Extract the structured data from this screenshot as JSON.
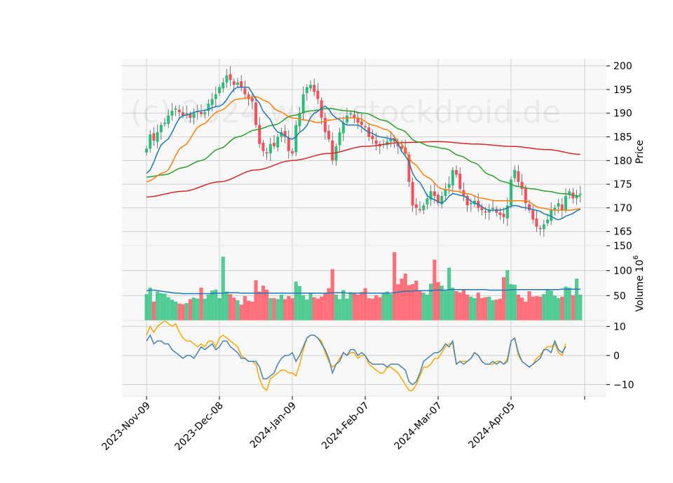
{
  "chart_data": {
    "type": "candlestick",
    "watermark": "(c) 2024 www.stockdroid.de",
    "x_ticks": [
      "2023-Nov-09",
      "2023-Dec-08",
      "2024-Jan-09",
      "2024-Feb-07",
      "2024-Mar-07",
      "2024-Apr-05"
    ],
    "x_tick_index": [
      0,
      20,
      40,
      60,
      80,
      100
    ],
    "n_bars": 120,
    "colors": {
      "up": "#26c07a",
      "down": "#ff4d5a",
      "ma_fast": "#1f77b4",
      "ma_mid": "#ff7f0e",
      "ma_slow": "#2ca02c",
      "ma_long": "#d62728",
      "osc1": "#4682b4",
      "osc2": "#ffa500",
      "vol_ma": "#1f77b4"
    },
    "panels": [
      {
        "name": "price",
        "ylabel": "Price",
        "ylim": [
          162,
          201.5
        ],
        "yticks": [
          165,
          170,
          175,
          180,
          185,
          190,
          195,
          200
        ]
      },
      {
        "name": "volume",
        "ylabel": "Volume  10",
        "ylabel_exp": "6",
        "ylim": [
          0,
          150
        ],
        "yticks": [
          50,
          100,
          150
        ]
      },
      {
        "name": "oscillator",
        "ylabel": "",
        "ylim": [
          -14,
          12
        ],
        "yticks": [
          -10,
          0,
          10
        ]
      }
    ],
    "closes": [
      182.5,
      185.5,
      184.2,
      186.0,
      187.5,
      188.0,
      189.5,
      190.5,
      191.0,
      190.2,
      189.5,
      190.0,
      189.0,
      190.0,
      190.5,
      189.8,
      190.2,
      192.0,
      193.0,
      194.0,
      195.5,
      196.5,
      198.0,
      197.0,
      196.0,
      196.5,
      195.5,
      194.0,
      193.0,
      192.5,
      187.5,
      183.5,
      182.0,
      181.5,
      183.5,
      183.0,
      185.0,
      186.0,
      185.0,
      182.0,
      181.5,
      187.5,
      190.0,
      194.0,
      195.5,
      196.0,
      194.5,
      193.0,
      189.0,
      186.0,
      184.5,
      180.0,
      183.0,
      186.0,
      188.0,
      189.5,
      190.0,
      189.0,
      188.0,
      187.5,
      187.0,
      185.0,
      184.5,
      183.5,
      183.0,
      183.5,
      184.0,
      184.5,
      184.0,
      183.0,
      182.5,
      181.5,
      175.5,
      170.5,
      170.0,
      169.5,
      170.5,
      172.0,
      173.5,
      172.5,
      171.0,
      172.5,
      174.0,
      175.0,
      178.0,
      177.0,
      174.0,
      172.5,
      170.5,
      171.0,
      171.5,
      170.0,
      169.5,
      169.0,
      169.5,
      170.0,
      169.0,
      168.5,
      168.0,
      170.5,
      176.0,
      178.0,
      175.5,
      174.0,
      171.0,
      169.5,
      167.5,
      166.0,
      165.5,
      166.5,
      167.5,
      169.5,
      170.0,
      171.0,
      169.5,
      172.5,
      173.5,
      172.0,
      172.5,
      173.0
    ],
    "volume": [
      53,
      66,
      38,
      58,
      55,
      54,
      47,
      42,
      38,
      34,
      33,
      35,
      43,
      46,
      44,
      66,
      44,
      52,
      60,
      62,
      45,
      128,
      58,
      53,
      46,
      41,
      32,
      49,
      40,
      38,
      81,
      58,
      70,
      62,
      45,
      45,
      43,
      52,
      43,
      49,
      45,
      78,
      69,
      51,
      42,
      56,
      47,
      44,
      48,
      54,
      65,
      103,
      52,
      43,
      61,
      44,
      57,
      55,
      52,
      57,
      65,
      45,
      44,
      51,
      47,
      54,
      58,
      53,
      137,
      73,
      84,
      94,
      71,
      73,
      80,
      59,
      56,
      52,
      74,
      122,
      77,
      70,
      60,
      106,
      66,
      59,
      56,
      62,
      52,
      48,
      45,
      56,
      45,
      47,
      48,
      41,
      42,
      44,
      87,
      101,
      73,
      72,
      52,
      46,
      38,
      59,
      48,
      49,
      48,
      53,
      62,
      60,
      50,
      45,
      48,
      68,
      66,
      51,
      84,
      52
    ],
    "vol_ma": [
      60,
      61,
      61,
      60,
      59,
      58,
      57,
      56,
      55,
      55,
      54,
      54,
      54,
      54,
      54,
      54,
      54,
      54,
      54,
      55,
      55,
      55,
      56,
      56,
      56,
      56,
      55,
      55,
      55,
      55,
      55,
      55,
      55,
      55,
      55,
      55,
      55,
      55,
      55,
      55,
      55,
      55,
      55,
      55,
      55,
      55,
      55,
      55,
      55,
      55,
      55,
      56,
      56,
      56,
      56,
      55,
      55,
      55,
      55,
      55,
      55,
      55,
      55,
      55,
      55,
      55,
      55,
      55,
      56,
      57,
      58,
      59,
      59,
      59,
      60,
      60,
      60,
      60,
      60,
      61,
      61,
      61,
      61,
      62,
      62,
      62,
      62,
      62,
      62,
      62,
      62,
      62,
      62,
      62,
      61,
      61,
      61,
      61,
      61,
      61,
      62,
      62,
      62,
      62,
      62,
      62,
      62,
      62,
      62,
      62,
      62,
      62,
      62,
      62,
      63,
      63,
      63,
      63,
      63,
      63
    ],
    "osc1": [
      5,
      7,
      4,
      5,
      5,
      4,
      4,
      2,
      1,
      0,
      -1,
      0,
      0,
      -1,
      1,
      3,
      2,
      3,
      4,
      2,
      3,
      5,
      5,
      3,
      2,
      1,
      -1,
      -1,
      -2,
      -2,
      -2,
      -4,
      -8,
      -8,
      -7,
      -6,
      -3,
      -1,
      0,
      0,
      1,
      -2,
      0,
      3,
      6,
      7,
      7,
      6,
      4,
      2,
      -1,
      -6,
      -3,
      -2,
      1,
      0,
      2,
      2,
      0,
      1,
      0,
      -2,
      -3,
      -3,
      -3,
      -3,
      -4,
      -3,
      -3,
      -3,
      -4,
      -5,
      -9,
      -10,
      -9,
      -6,
      -2,
      -1,
      0,
      1,
      1,
      2,
      4,
      3,
      5,
      -3,
      -2,
      -3,
      -2,
      -1,
      1,
      0,
      -2,
      -3,
      -3,
      -2,
      -3,
      -2,
      -3,
      -2,
      5,
      6,
      1,
      -2,
      -3,
      -4,
      -3,
      -2,
      -1,
      2,
      2,
      1,
      5,
      2,
      1,
      3
    ],
    "osc2": [
      7,
      10,
      8,
      10,
      11,
      12,
      11,
      10,
      11,
      8,
      6,
      5,
      5,
      4,
      3,
      4,
      3,
      5,
      5,
      3,
      6,
      7,
      6,
      5,
      4,
      3,
      0,
      -1,
      -2,
      -2,
      -3,
      -8,
      -11,
      -12,
      -8,
      -7,
      -6,
      -5,
      -5,
      -6,
      -6,
      -7,
      -3,
      2,
      6,
      7,
      7,
      6,
      5,
      1,
      -2,
      -4,
      -3,
      -1,
      1,
      0,
      1,
      1,
      -1,
      0,
      0,
      -3,
      -4,
      -5,
      -6,
      -6,
      -4,
      -4,
      -5,
      -6,
      -8,
      -10,
      -12,
      -12,
      -10,
      -7,
      -4,
      -4,
      -3,
      -1,
      -1,
      1,
      3,
      4,
      4,
      -3,
      -2,
      -2,
      -2,
      -1,
      1,
      0,
      -2,
      -3,
      -3,
      -3,
      -2,
      -2,
      -3,
      -1,
      5,
      6,
      0,
      -2,
      -3,
      -4,
      -3,
      -1,
      0,
      2,
      3,
      3,
      4,
      1,
      0,
      4
    ],
    "ma_fast_anchor": [
      [
        0,
        177.3
      ],
      [
        5,
        184.0
      ],
      [
        10,
        189.5
      ],
      [
        15,
        190.5
      ],
      [
        20,
        191.5
      ],
      [
        25,
        195.5
      ],
      [
        28,
        195.5
      ],
      [
        30,
        193.0
      ],
      [
        33,
        189.5
      ],
      [
        36,
        186.0
      ],
      [
        40,
        184.5
      ],
      [
        43,
        186.5
      ],
      [
        46,
        190.0
      ],
      [
        49,
        191.5
      ],
      [
        52,
        189.0
      ],
      [
        55,
        187.5
      ],
      [
        58,
        187.5
      ],
      [
        61,
        186.0
      ],
      [
        64,
        185.0
      ],
      [
        68,
        184.5
      ],
      [
        71,
        181.0
      ],
      [
        74,
        176.0
      ],
      [
        78,
        172.0
      ],
      [
        81,
        171.0
      ],
      [
        84,
        173.0
      ],
      [
        87,
        172.5
      ],
      [
        90,
        171.0
      ],
      [
        94,
        169.5
      ],
      [
        97,
        169.5
      ],
      [
        101,
        170.5
      ],
      [
        104,
        170.0
      ],
      [
        107,
        169.5
      ],
      [
        110,
        168.5
      ],
      [
        113,
        167.5
      ],
      [
        116,
        168.5
      ],
      [
        119,
        169.7
      ]
    ],
    "ma_mid_anchor": [
      [
        0,
        175.5
      ],
      [
        5,
        177.5
      ],
      [
        10,
        183.0
      ],
      [
        15,
        187.5
      ],
      [
        20,
        190.5
      ],
      [
        25,
        193.0
      ],
      [
        30,
        193.5
      ],
      [
        33,
        192.5
      ],
      [
        36,
        190.5
      ],
      [
        40,
        189.0
      ],
      [
        44,
        188.5
      ],
      [
        47,
        188.0
      ],
      [
        50,
        188.5
      ],
      [
        54,
        189.0
      ],
      [
        58,
        189.0
      ],
      [
        62,
        187.5
      ],
      [
        66,
        186.5
      ],
      [
        70,
        183.5
      ],
      [
        73,
        179.5
      ],
      [
        77,
        176.5
      ],
      [
        81,
        174.0
      ],
      [
        85,
        173.5
      ],
      [
        88,
        173.0
      ],
      [
        92,
        172.0
      ],
      [
        96,
        171.5
      ],
      [
        100,
        171.5
      ],
      [
        104,
        171.5
      ],
      [
        108,
        170.0
      ],
      [
        112,
        169.5
      ],
      [
        116,
        169.5
      ],
      [
        119,
        169.8
      ]
    ],
    "ma_slow_anchor": [
      [
        0,
        176.5
      ],
      [
        5,
        177.0
      ],
      [
        10,
        178.5
      ],
      [
        15,
        180.0
      ],
      [
        20,
        182.5
      ],
      [
        25,
        185.0
      ],
      [
        30,
        186.5
      ],
      [
        35,
        187.5
      ],
      [
        40,
        189.5
      ],
      [
        45,
        190.5
      ],
      [
        50,
        191.0
      ],
      [
        55,
        190.5
      ],
      [
        60,
        190.0
      ],
      [
        65,
        188.5
      ],
      [
        70,
        186.5
      ],
      [
        74,
        184.0
      ],
      [
        78,
        183.0
      ],
      [
        82,
        182.5
      ],
      [
        86,
        181.0
      ],
      [
        90,
        179.5
      ],
      [
        94,
        177.0
      ],
      [
        98,
        175.5
      ],
      [
        102,
        174.5
      ],
      [
        106,
        174.0
      ],
      [
        110,
        173.5
      ],
      [
        114,
        173.0
      ],
      [
        119,
        172.5
      ]
    ],
    "ma_long_anchor": [
      [
        0,
        172.3
      ],
      [
        10,
        173.5
      ],
      [
        20,
        175.5
      ],
      [
        30,
        178.0
      ],
      [
        40,
        180.0
      ],
      [
        50,
        181.5
      ],
      [
        60,
        183.0
      ],
      [
        70,
        183.8
      ],
      [
        80,
        184.0
      ],
      [
        90,
        183.5
      ],
      [
        100,
        183.0
      ],
      [
        110,
        182.3
      ],
      [
        119,
        181.3
      ]
    ]
  }
}
